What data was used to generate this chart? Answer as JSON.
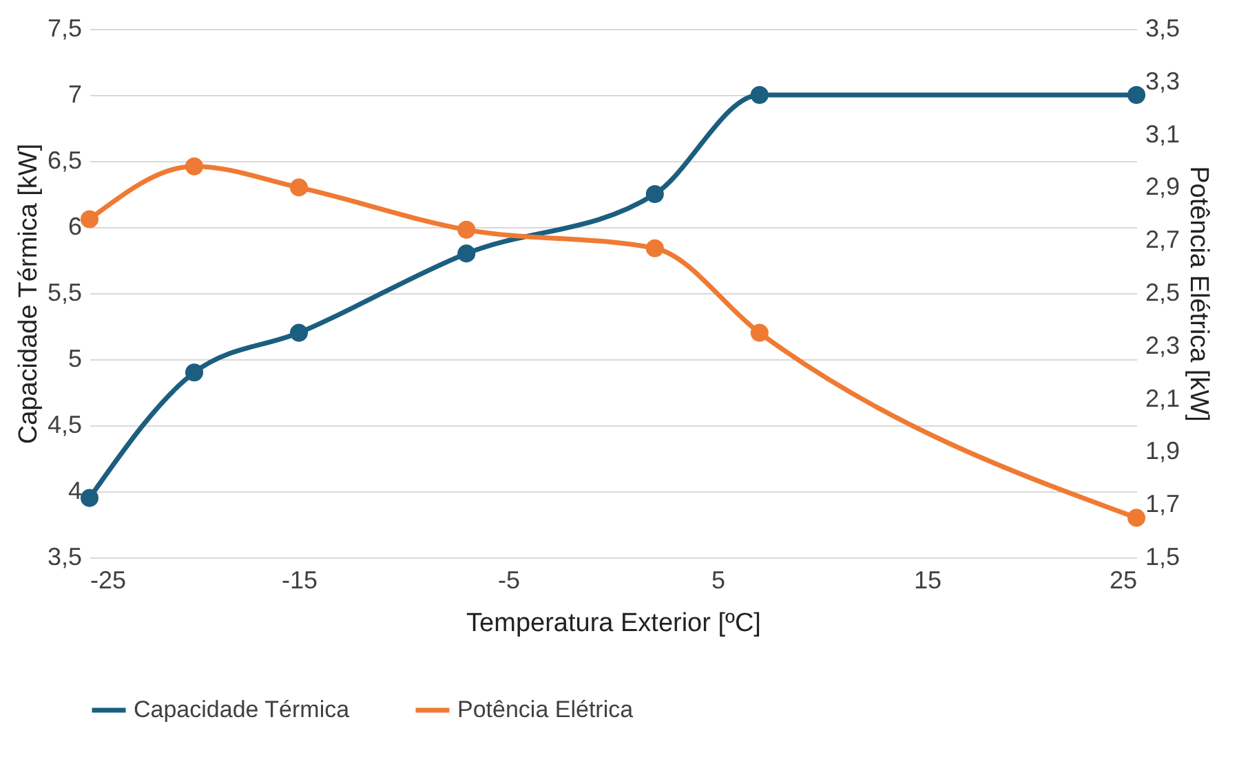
{
  "chart_data": {
    "type": "line",
    "xlabel": "Temperatura Exterior [ºC]",
    "ylabel": "Capacidade Térmica [kW]",
    "y2label": "Potência Elétrica [kW]",
    "x": [
      -25,
      -20,
      -15,
      -7,
      2,
      7,
      25
    ],
    "series": [
      {
        "name": "Capacidade Térmica",
        "color": "#1b5e7f",
        "values": [
          3.95,
          4.9,
          5.2,
          5.8,
          6.25,
          7.0,
          7.0
        ]
      },
      {
        "name": "Potência Elétrica",
        "color": "#ef7a33",
        "values": [
          2.78,
          2.98,
          2.9,
          2.74,
          2.67,
          2.35,
          1.65
        ],
        "axis": "y2"
      }
    ],
    "xlim": [
      -25,
      25
    ],
    "xticks": [
      -25,
      -15,
      -5,
      5,
      15,
      25
    ],
    "ylim": [
      3.5,
      7.5
    ],
    "yticks": [
      {
        "value": 3.5,
        "label": "3,5"
      },
      {
        "value": 4,
        "label": "4"
      },
      {
        "value": 4.5,
        "label": "4,5"
      },
      {
        "value": 5,
        "label": "5"
      },
      {
        "value": 5.5,
        "label": "5,5"
      },
      {
        "value": 6,
        "label": "6"
      },
      {
        "value": 6.5,
        "label": "6,5"
      },
      {
        "value": 7,
        "label": "7"
      },
      {
        "value": 7.5,
        "label": "7,5"
      }
    ],
    "y2lim": [
      1.5,
      3.5
    ],
    "y2ticks": [
      {
        "value": 1.5,
        "label": "1,5"
      },
      {
        "value": 1.7,
        "label": "1,7"
      },
      {
        "value": 1.9,
        "label": "1,9"
      },
      {
        "value": 2.1,
        "label": "2,1"
      },
      {
        "value": 2.3,
        "label": "2,3"
      },
      {
        "value": 2.5,
        "label": "2,5"
      },
      {
        "value": 2.7,
        "label": "2,7"
      },
      {
        "value": 2.9,
        "label": "2,9"
      },
      {
        "value": 3.1,
        "label": "3,1"
      },
      {
        "value": 3.3,
        "label": "3,3"
      },
      {
        "value": 3.5,
        "label": "3,5"
      }
    ],
    "grid": "y",
    "legend": "bottom",
    "marker": "circle",
    "line_style": "solid"
  }
}
